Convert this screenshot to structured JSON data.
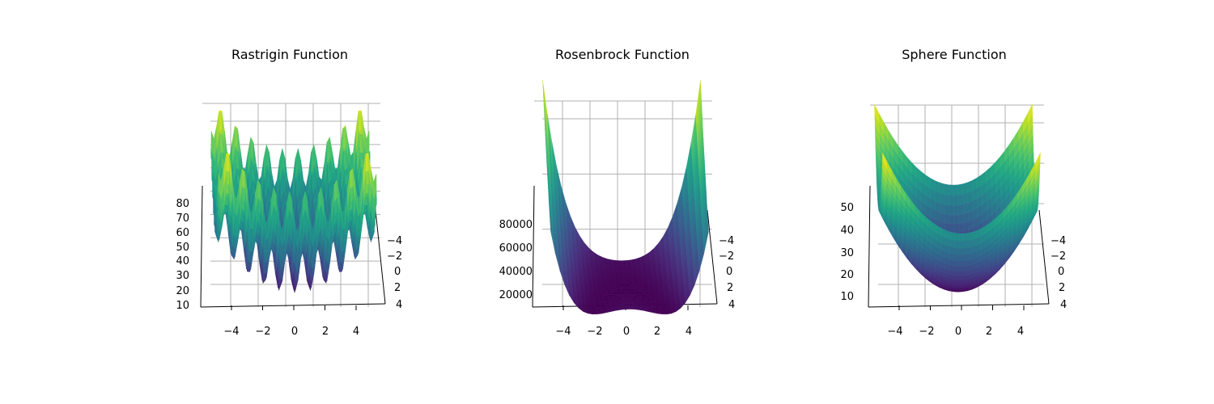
{
  "chart_data": [
    {
      "type": "surface",
      "title": "Rastrigin Function",
      "colormap": "viridis",
      "x_ticks": [
        "−4",
        "−2",
        "0",
        "2",
        "4"
      ],
      "y_ticks": [
        "−4",
        "−2",
        "0",
        "2",
        "4"
      ],
      "z_ticks": [
        "10",
        "20",
        "30",
        "40",
        "50",
        "60",
        "70",
        "80"
      ],
      "x_range": [
        -5.12,
        5.12
      ],
      "y_range": [
        -5.12,
        5.12
      ],
      "z_range": [
        0,
        80
      ],
      "grid": true
    },
    {
      "type": "surface",
      "title": "Rosenbrock Function",
      "colormap": "viridis",
      "x_ticks": [
        "−4",
        "−2",
        "0",
        "2",
        "4"
      ],
      "y_ticks": [
        "−4",
        "−2",
        "0",
        "2",
        "4"
      ],
      "z_ticks": [
        "20000",
        "40000",
        "60000",
        "80000"
      ],
      "x_range": [
        -5,
        5
      ],
      "y_range": [
        -5,
        5
      ],
      "z_range": [
        0,
        90000
      ],
      "grid": true
    },
    {
      "type": "surface",
      "title": "Sphere Function",
      "colormap": "viridis",
      "x_ticks": [
        "−4",
        "−2",
        "0",
        "2",
        "4"
      ],
      "y_ticks": [
        "−4",
        "−2",
        "0",
        "2",
        "4"
      ],
      "z_ticks": [
        "10",
        "20",
        "30",
        "40",
        "50"
      ],
      "x_range": [
        -5,
        5
      ],
      "y_range": [
        -5,
        5
      ],
      "z_range": [
        0,
        50
      ],
      "grid": true
    }
  ]
}
